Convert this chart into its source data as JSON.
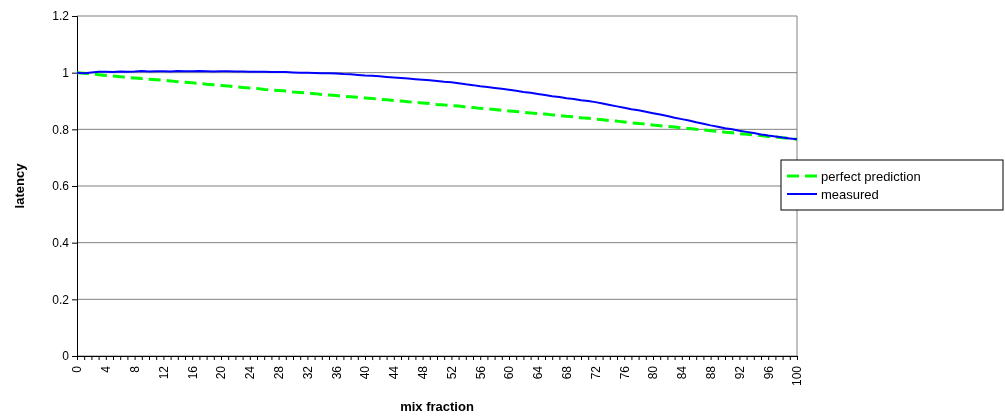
{
  "chart_data": {
    "type": "line",
    "xlabel": "mix fraction",
    "ylabel": "latency",
    "categories": [
      "0",
      null,
      null,
      null,
      "4",
      null,
      null,
      null,
      "8",
      null,
      null,
      null,
      "12",
      null,
      null,
      null,
      "16",
      null,
      null,
      null,
      "20",
      null,
      null,
      null,
      "24",
      null,
      null,
      null,
      "28",
      null,
      null,
      null,
      "32",
      null,
      null,
      null,
      "36",
      null,
      null,
      null,
      "40",
      null,
      null,
      null,
      "44",
      null,
      null,
      null,
      "48",
      null,
      null,
      null,
      "52",
      null,
      null,
      null,
      "56",
      null,
      null,
      null,
      "60",
      null,
      null,
      null,
      "64",
      null,
      null,
      null,
      "68",
      null,
      null,
      null,
      "72",
      null,
      null,
      null,
      "76",
      null,
      null,
      null,
      "80",
      null,
      null,
      null,
      "84",
      null,
      null,
      null,
      "88",
      null,
      null,
      null,
      "92",
      null,
      null,
      null,
      "96",
      null,
      null,
      null,
      "100"
    ],
    "series": [
      {
        "name": "perfect prediction",
        "color": "#00ff00",
        "line_style": "dashed",
        "values": [
          1.0,
          0.998,
          0.995,
          0.993,
          0.99,
          0.988,
          0.986,
          0.983,
          0.981,
          0.979,
          0.977,
          0.975,
          0.973,
          0.971,
          0.968,
          0.966,
          0.964,
          0.962,
          0.959,
          0.957,
          0.955,
          0.953,
          0.95,
          0.948,
          0.946,
          0.944,
          0.941,
          0.939,
          0.937,
          0.935,
          0.932,
          0.93,
          0.928,
          0.926,
          0.923,
          0.921,
          0.919,
          0.917,
          0.915,
          0.913,
          0.911,
          0.909,
          0.906,
          0.904,
          0.902,
          0.9,
          0.897,
          0.895,
          0.893,
          0.891,
          0.888,
          0.886,
          0.884,
          0.882,
          0.879,
          0.877,
          0.874,
          0.872,
          0.87,
          0.867,
          0.865,
          0.863,
          0.86,
          0.858,
          0.856,
          0.854,
          0.851,
          0.849,
          0.846,
          0.844,
          0.841,
          0.839,
          0.836,
          0.834,
          0.831,
          0.829,
          0.826,
          0.823,
          0.821,
          0.818,
          0.815,
          0.813,
          0.81,
          0.808,
          0.805,
          0.803,
          0.8,
          0.798,
          0.795,
          0.793,
          0.79,
          0.788,
          0.785,
          0.783,
          0.78,
          0.778,
          0.775,
          0.773,
          0.77,
          0.768,
          0.765
        ]
      },
      {
        "name": "measured",
        "color": "#0000ff",
        "line_style": "solid",
        "values": [
          1.0,
          0.998,
          1.001,
          1.003,
          1.003,
          1.002,
          1.004,
          1.003,
          1.004,
          1.006,
          1.004,
          1.005,
          1.005,
          1.004,
          1.006,
          1.005,
          1.005,
          1.006,
          1.005,
          1.004,
          1.005,
          1.005,
          1.004,
          1.004,
          1.003,
          1.003,
          1.003,
          1.002,
          1.002,
          1.002,
          1.001,
          1.0,
          1.0,
          0.999,
          0.998,
          0.998,
          0.997,
          0.995,
          0.994,
          0.992,
          0.99,
          0.989,
          0.987,
          0.985,
          0.983,
          0.981,
          0.979,
          0.977,
          0.975,
          0.973,
          0.971,
          0.968,
          0.966,
          0.963,
          0.959,
          0.956,
          0.952,
          0.949,
          0.946,
          0.943,
          0.94,
          0.936,
          0.932,
          0.929,
          0.925,
          0.921,
          0.917,
          0.914,
          0.91,
          0.907,
          0.903,
          0.9,
          0.896,
          0.891,
          0.886,
          0.881,
          0.876,
          0.871,
          0.867,
          0.862,
          0.857,
          0.852,
          0.847,
          0.841,
          0.836,
          0.831,
          0.825,
          0.82,
          0.814,
          0.809,
          0.804,
          0.8,
          0.795,
          0.791,
          0.787,
          0.782,
          0.778,
          0.775,
          0.771,
          0.768,
          0.765
        ]
      }
    ],
    "ylim": [
      0,
      1.2
    ],
    "yticks": [
      0,
      0.2,
      0.4,
      0.6,
      0.8,
      1,
      1.2
    ],
    "grid": "y",
    "legend": "right",
    "marker": "none"
  }
}
